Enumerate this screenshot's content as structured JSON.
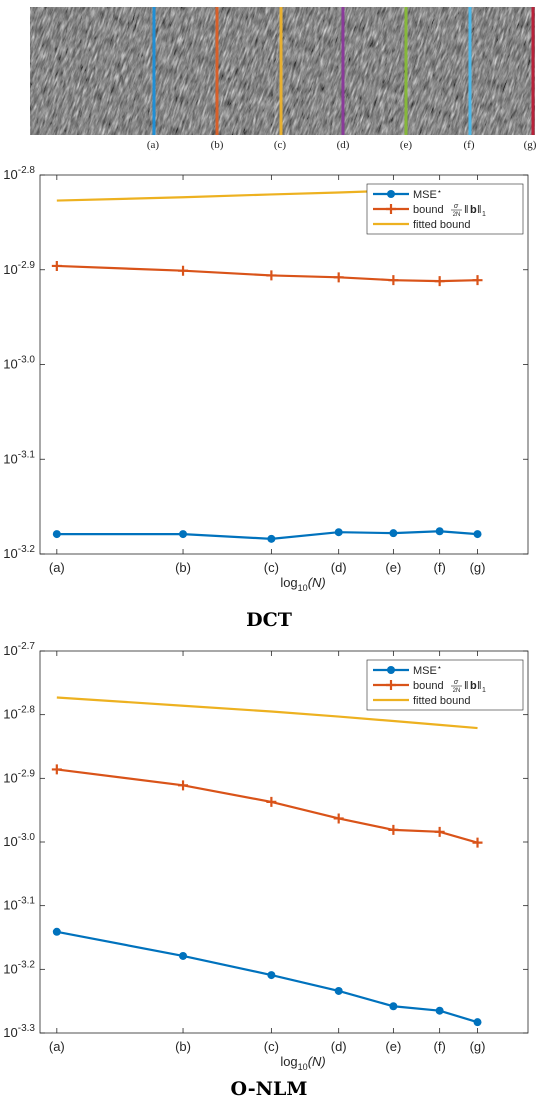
{
  "strip": {
    "labels": [
      "(a)",
      "(b)",
      "(c)",
      "(d)",
      "(e)",
      "(f)",
      "(g)"
    ],
    "line_colors": [
      "#1f8fd6",
      "#d8602a",
      "#e8b030",
      "#8a3a9a",
      "#86b83a",
      "#4cb8e8",
      "#b8223a"
    ]
  },
  "chart_data": [
    {
      "type": "line",
      "caption": "DCT",
      "categories": [
        "(a)",
        "(b)",
        "(c)",
        "(d)",
        "(e)",
        "(f)",
        "(g)"
      ],
      "x": [
        0,
        1.5,
        2.55,
        3.35,
        4.0,
        4.55,
        5.0
      ],
      "xlabel_base": "log",
      "xlabel_sub": "10",
      "xlabel_arg": "(N)",
      "yscale": "log",
      "ylim": [
        -3.2,
        -2.8
      ],
      "yticks": [
        {
          "value": -2.8,
          "label": "-2.8"
        },
        {
          "value": -2.9,
          "label": "-2.9"
        },
        {
          "value": -3.0,
          "label": "-3.0"
        },
        {
          "value": -3.1,
          "label": "-3.1"
        },
        {
          "value": -3.2,
          "label": "-3.2"
        }
      ],
      "series": [
        {
          "name": "MSE*",
          "color": "#0072bd",
          "marker": "circle",
          "values": [
            -3.179,
            -3.179,
            -3.184,
            -3.177,
            -3.178,
            -3.176,
            -3.179
          ]
        },
        {
          "name": "bound",
          "color": "#d95319",
          "marker": "plus",
          "values": [
            -2.896,
            -2.901,
            -2.906,
            -2.908,
            -2.911,
            -2.912,
            -2.911
          ]
        },
        {
          "name": "fitted bound",
          "color": "#edb120",
          "marker": "none",
          "values": [
            -2.827,
            -2.8235,
            -2.8205,
            -2.8185,
            -2.8165,
            -2.815,
            -2.814
          ]
        }
      ],
      "legend": {
        "position": "top-right",
        "labels": [
          "MSE",
          "bound",
          "fitted bound"
        ]
      }
    },
    {
      "type": "line",
      "caption": "O-NLM",
      "categories": [
        "(a)",
        "(b)",
        "(c)",
        "(d)",
        "(e)",
        "(f)",
        "(g)"
      ],
      "x": [
        0,
        1.5,
        2.55,
        3.35,
        4.0,
        4.55,
        5.0
      ],
      "xlabel_base": "log",
      "xlabel_sub": "10",
      "xlabel_arg": "(N)",
      "yscale": "log",
      "ylim": [
        -3.3,
        -2.7
      ],
      "yticks": [
        {
          "value": -2.7,
          "label": "-2.7"
        },
        {
          "value": -2.8,
          "label": "-2.8"
        },
        {
          "value": -2.9,
          "label": "-2.9"
        },
        {
          "value": -3.0,
          "label": "-3.0"
        },
        {
          "value": -3.1,
          "label": "-3.1"
        },
        {
          "value": -3.2,
          "label": "-3.2"
        },
        {
          "value": -3.3,
          "label": "-3.3"
        }
      ],
      "series": [
        {
          "name": "MSE*",
          "color": "#0072bd",
          "marker": "circle",
          "values": [
            -3.141,
            -3.179,
            -3.209,
            -3.234,
            -3.258,
            -3.265,
            -3.283
          ]
        },
        {
          "name": "bound",
          "color": "#d95319",
          "marker": "plus",
          "values": [
            -2.886,
            -2.911,
            -2.937,
            -2.963,
            -2.981,
            -2.984,
            -3.001
          ]
        },
        {
          "name": "fitted bound",
          "color": "#edb120",
          "marker": "none",
          "values": [
            -2.773,
            -2.786,
            -2.795,
            -2.803,
            -2.81,
            -2.816,
            -2.821
          ]
        }
      ],
      "legend": {
        "position": "top-right",
        "labels": [
          "MSE",
          "bound",
          "fitted bound"
        ]
      }
    }
  ]
}
